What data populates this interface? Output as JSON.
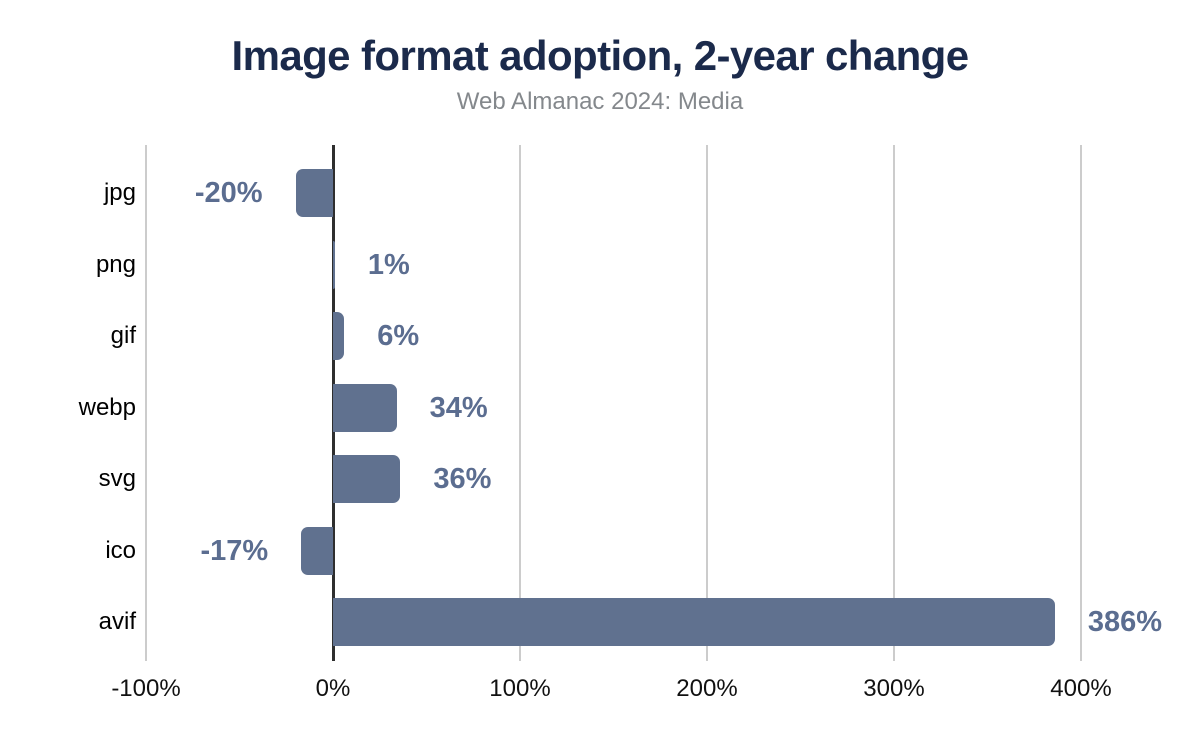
{
  "chart_data": {
    "type": "bar",
    "orientation": "horizontal",
    "title": "Image format adoption, 2-year change",
    "subtitle": "Web Almanac 2024: Media",
    "xlabel": "",
    "ylabel": "",
    "categories": [
      "jpg",
      "png",
      "gif",
      "webp",
      "svg",
      "ico",
      "avif"
    ],
    "values": [
      -20,
      1,
      6,
      34,
      36,
      -17,
      386
    ],
    "value_labels": [
      "-20%",
      "1%",
      "6%",
      "34%",
      "36%",
      "-17%",
      "386%"
    ],
    "xlim": [
      -100,
      450
    ],
    "ticks": [
      {
        "value": -100,
        "label": "-100%"
      },
      {
        "value": 0,
        "label": "0%"
      },
      {
        "value": 100,
        "label": "100%"
      },
      {
        "value": 200,
        "label": "200%"
      },
      {
        "value": 300,
        "label": "300%"
      },
      {
        "value": 400,
        "label": "400%"
      }
    ],
    "grid": "vertical",
    "legend": "none",
    "colors": {
      "bar": "#60718f",
      "value_label": "#5b6d90",
      "gridline": "#cccccc",
      "zero_line": "#2e2e2e",
      "title": "#1b2a4b",
      "subtitle": "#84888c",
      "axis_text": "#111111",
      "background": "#ffffff"
    }
  }
}
